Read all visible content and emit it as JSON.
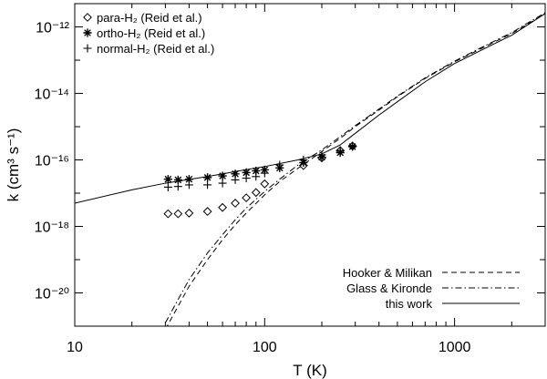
{
  "chart_data": {
    "type": "scatter",
    "title": "",
    "xlabel": "T (K)",
    "ylabel": "k (cm³ s⁻¹)",
    "x_scale": "log",
    "y_scale": "log",
    "xlim": [
      10,
      3000
    ],
    "ylim_log10": [
      -21,
      -11.3
    ],
    "x_ticks": [
      {
        "value": 10,
        "label": "10"
      },
      {
        "value": 100,
        "label": "100"
      },
      {
        "value": 1000,
        "label": "1000"
      }
    ],
    "y_ticks": [
      {
        "value": -12,
        "label": "10⁻¹²"
      },
      {
        "value": -14,
        "label": "10⁻¹⁴"
      },
      {
        "value": -16,
        "label": "10⁻¹⁶"
      },
      {
        "value": -18,
        "label": "10⁻¹⁸"
      },
      {
        "value": -20,
        "label": "10⁻²⁰"
      }
    ],
    "grid": false,
    "marker_series": [
      {
        "name": "para-H₂ (Reid et al.)",
        "marker": "diamond",
        "x": [
          31,
          35,
          40,
          50,
          60,
          70,
          80,
          90,
          100,
          160,
          200,
          250,
          290
        ],
        "log10_k": [
          -17.62,
          -17.62,
          -17.6,
          -17.55,
          -17.43,
          -17.3,
          -17.14,
          -16.98,
          -16.72,
          -16.17,
          -15.94,
          -15.72,
          -15.58
        ]
      },
      {
        "name": "ortho-H₂ (Reid et al.)",
        "marker": "asterisk",
        "x": [
          31,
          35,
          40,
          50,
          60,
          70,
          80,
          90,
          100,
          120,
          160,
          200,
          250,
          290
        ],
        "log10_k": [
          -16.58,
          -16.6,
          -16.58,
          -16.53,
          -16.48,
          -16.42,
          -16.38,
          -16.33,
          -16.3,
          -16.24,
          -16.08,
          -15.92,
          -15.78,
          -15.6
        ]
      },
      {
        "name": "normal-H₂ (Reid et al.)",
        "marker": "plus",
        "x": [
          31,
          35,
          40,
          50,
          60,
          70,
          80,
          90,
          100,
          120,
          160,
          200,
          250,
          290
        ],
        "log10_k": [
          -16.82,
          -16.8,
          -16.75,
          -16.75,
          -16.7,
          -16.6,
          -16.55,
          -16.5,
          -16.4,
          -16.15,
          -16.0,
          -15.85,
          -15.72,
          -15.58
        ]
      }
    ],
    "line_series": [
      {
        "name": "Hooker & Milikan",
        "style": "dashed",
        "x": [
          30,
          35,
          40,
          50,
          60,
          70,
          80,
          100,
          120,
          150,
          200,
          250,
          300,
          400,
          500,
          700,
          1000,
          1500,
          2000,
          3000
        ],
        "log10_k": [
          -21.1,
          -20.4,
          -19.8,
          -19.0,
          -18.4,
          -17.95,
          -17.6,
          -17.05,
          -16.65,
          -16.25,
          -15.75,
          -15.35,
          -15.0,
          -14.5,
          -14.1,
          -13.55,
          -13.05,
          -12.55,
          -12.2,
          -11.6
        ]
      },
      {
        "name": "Glass & Kironde",
        "style": "dashdot",
        "x": [
          30,
          35,
          40,
          50,
          60,
          70,
          80,
          100,
          120,
          150,
          200,
          250,
          300,
          400,
          500,
          700,
          1000,
          1500,
          2000,
          3000
        ],
        "log10_k": [
          -20.9,
          -20.2,
          -19.6,
          -18.8,
          -18.25,
          -17.8,
          -17.45,
          -16.95,
          -16.58,
          -16.15,
          -15.7,
          -15.3,
          -14.97,
          -14.47,
          -14.08,
          -13.53,
          -13.03,
          -12.52,
          -12.17,
          -11.57
        ]
      },
      {
        "name": "this work",
        "style": "solid",
        "x": [
          10,
          20,
          30,
          50,
          70,
          100,
          150,
          200,
          250,
          300,
          400,
          500,
          700,
          1000,
          1500,
          2000,
          3000
        ],
        "log10_k": [
          -17.3,
          -16.9,
          -16.7,
          -16.5,
          -16.35,
          -16.2,
          -16.0,
          -15.82,
          -15.55,
          -15.2,
          -14.65,
          -14.25,
          -13.65,
          -13.1,
          -12.6,
          -12.25,
          -11.6
        ]
      }
    ],
    "legend_markers_position": "top-left",
    "legend_lines_position": "bottom-right"
  }
}
